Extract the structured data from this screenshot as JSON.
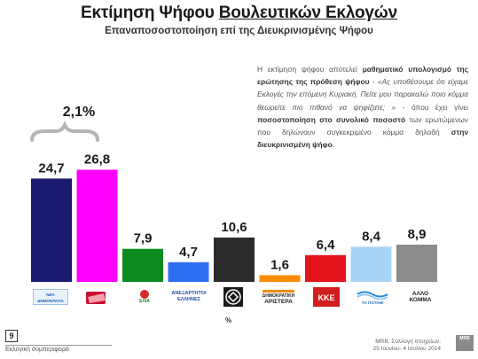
{
  "title_plain": "Εκτίμηση Ψήφου ",
  "title_underlined": "Βουλευτικών Εκλογών",
  "subtitle": "Επαναποσοστοποίηση επί της Διευκρινισμένης Ψήφου",
  "explanation": {
    "p1": "Η εκτίμηση ψήφου αποτελεί ",
    "b1": "μαθηματικό υπολογισμό της ερώτησης της πρόθεση ψήφου",
    "p2": " - ",
    "i1": "«Ας υποθέσουμε ότι είχαμε Εκλογές την επόμενη Κυριακή. Πείτε μου παρακαλώ ποιο κόμμα θεωρείτε πιο πιθανό να ψηφίζατε; »",
    "p3": " - όπου έχει γίνει ",
    "b2": "ποσοστοποίηση στο συνολικό ποσοστό",
    "p4": " των ερωτώμενων που δηλώνουν συγκεκριμένο κόμμα δηλαδή ",
    "b3": "στην διευκρινισμένη ψήφο",
    "p5": "."
  },
  "chart_data": {
    "type": "bar",
    "categories": [
      "ΝΕΑ ΔΗΜΟΚΡΑΤΙΑ",
      "ΣΥΡΙΖΑ",
      "ΕΛΙΑ",
      "ΑΝΕΞΑΡΤΗΤΟΙ ΕΛΛΗΝΕΣ",
      "ΧΡΥΣΗ ΑΥΓΗ",
      "ΔΗΜΟΚΡΑΤΙΚΗ ΑΡΙΣΤΕΡΑ",
      "ΚΚΕ",
      "ΤΟ ΠΟΤΑΜΙ",
      "ΑΛΛΟ ΚΟΜΜΑ"
    ],
    "values": [
      24.7,
      26.8,
      7.9,
      4.7,
      10.6,
      1.6,
      6.4,
      8.4,
      8.9
    ],
    "value_labels": [
      "24,7",
      "26,8",
      "7,9",
      "4,7",
      "10,6",
      "1,6",
      "6,4",
      "8,4",
      "8,9"
    ],
    "colors": [
      "#1a1a6e",
      "#ff00ff",
      "#0b8a1f",
      "#2d6ef0",
      "#2b2b2b",
      "#ff8c00",
      "#e3141b",
      "#a8d4f5",
      "#8c8c8c"
    ],
    "annotation": "2,1%",
    "unit_label": "%",
    "ylim": [
      0,
      30
    ]
  },
  "logos": {
    "nd": "ΝΕΑ ΔΗΜΟΚΡΑΤΙΑ",
    "syriza": "",
    "elia": "ΕΛΙΑ",
    "anel": "ΑΝΕΞΑΡΤΗΤΟΙ ΕΛΛΗΝΕΣ",
    "dimar_1": "ΔΗΜΟΚΡΑΤΙΚΗ",
    "dimar_2": "ΑΡΙΣΤΕΡΑ",
    "kke": "ΚΚΕ",
    "potami": "ΤΟ ΠΟΤΑΜΙ",
    "allo_1": "ΑΛΛΟ",
    "allo_2": "ΚΟΜΜΑ"
  },
  "footer": {
    "page_number": "9",
    "left_text": "Εκλογική συμπεριφορά",
    "source_1": "MRB, Συλλογή στοιχείων:",
    "source_2": "25 Ιουνίου- 4 Ιουλίου 2014",
    "logo_text": "MRB"
  }
}
